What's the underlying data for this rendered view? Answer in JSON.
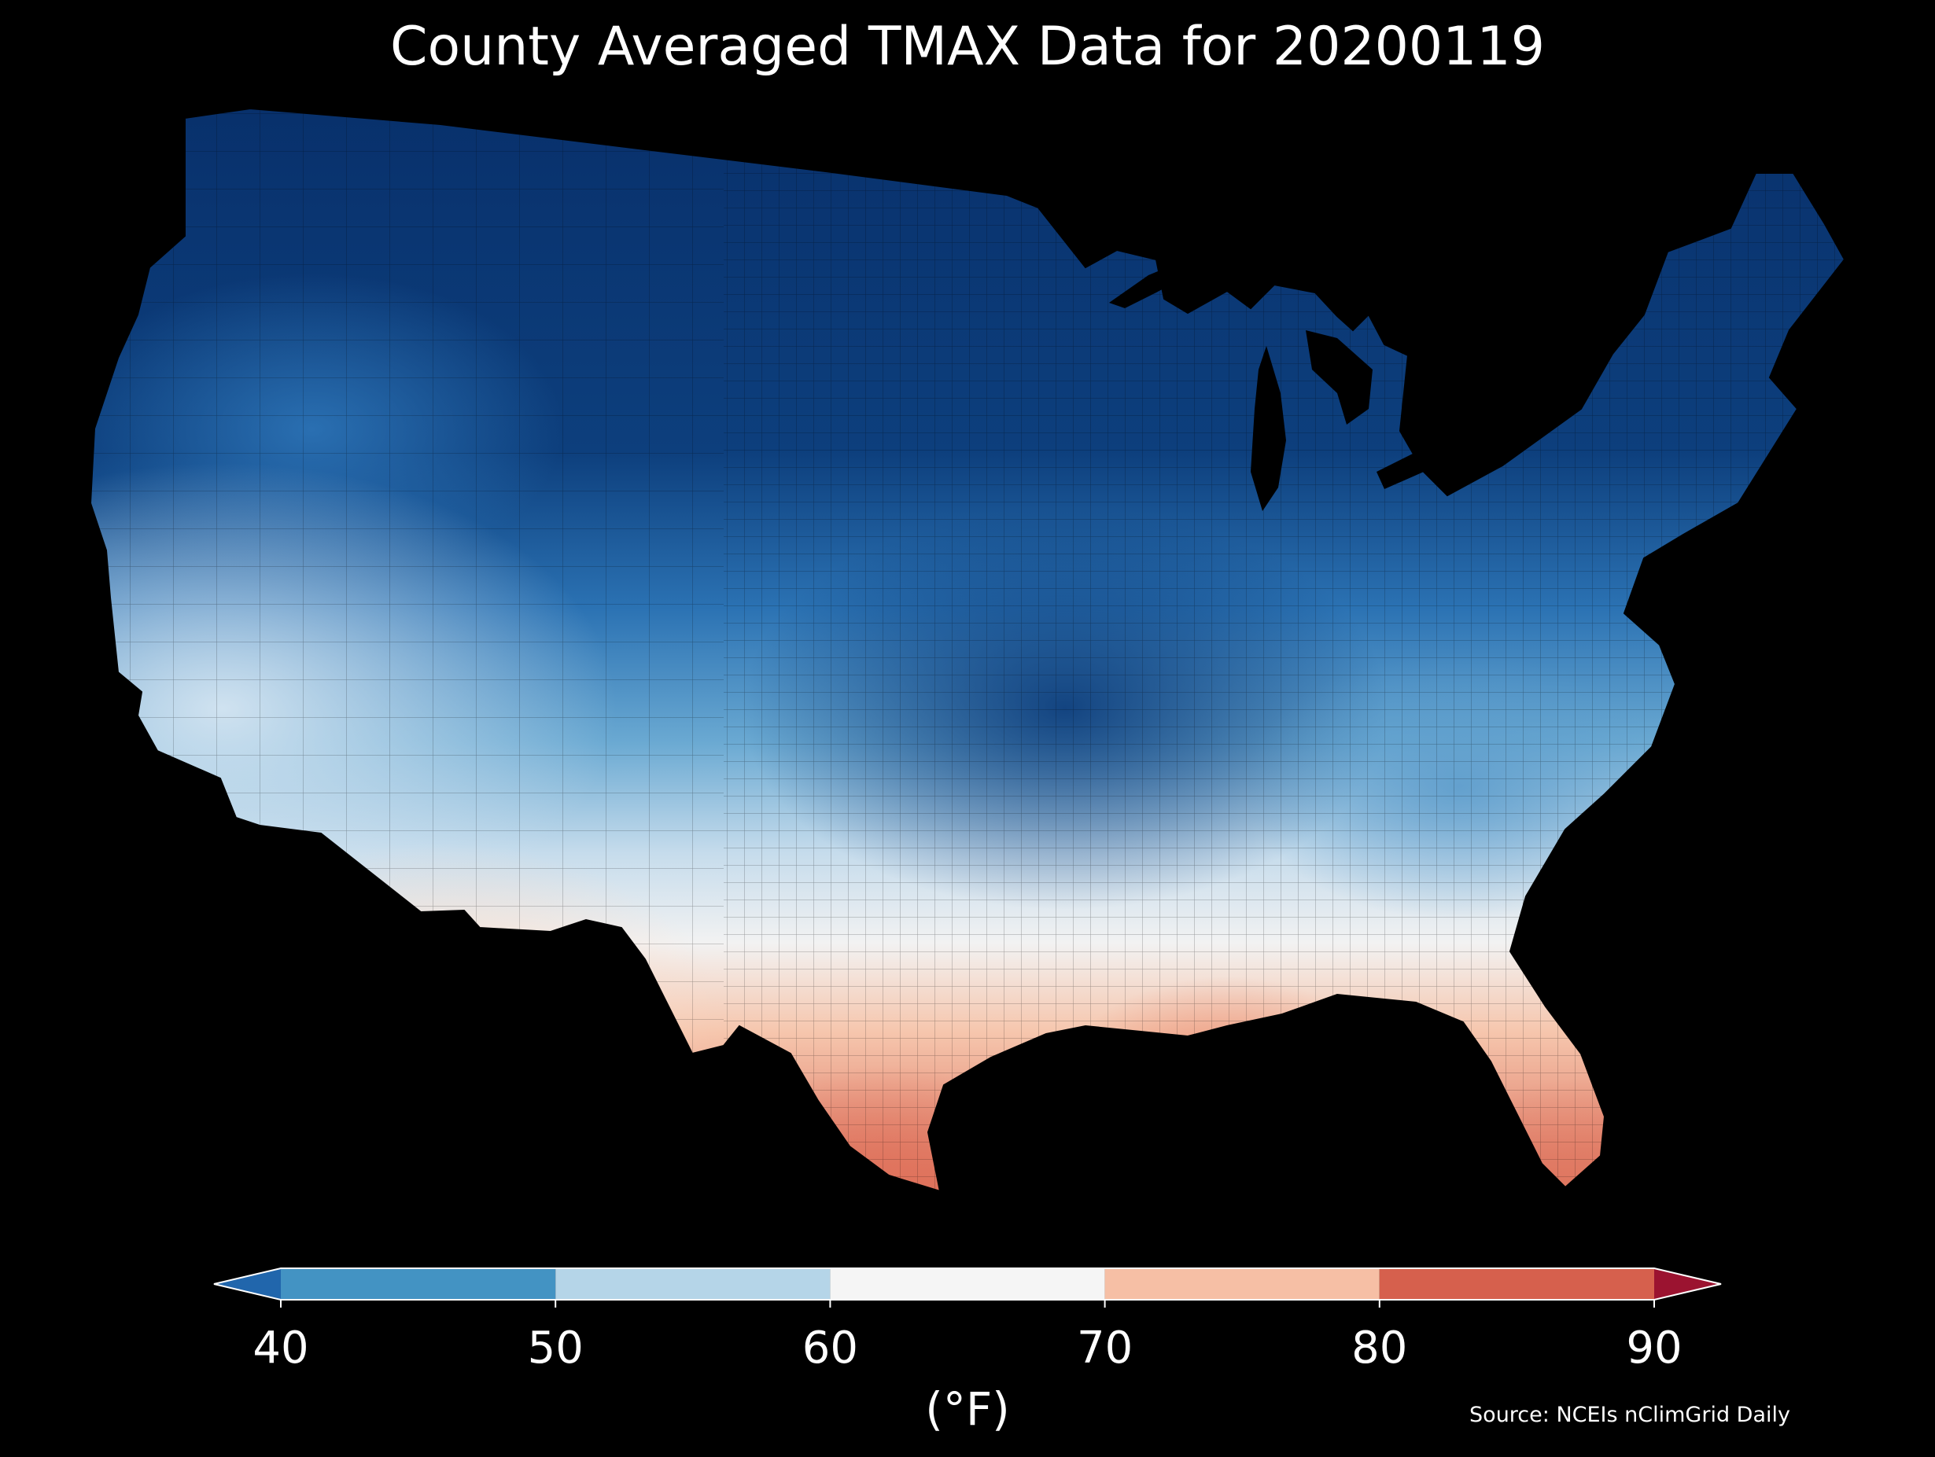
{
  "title": "County Averaged TMAX Data for 20200119",
  "colorbar": {
    "unit": "(°F)",
    "ticks": [
      "40",
      "50",
      "60",
      "70",
      "80",
      "90"
    ],
    "bins": [
      {
        "from": 40,
        "to": 50,
        "color": "#4393c3"
      },
      {
        "from": 50,
        "to": 60,
        "color": "#b5d5e8"
      },
      {
        "from": 60,
        "to": 70,
        "color": "#f5f5f5"
      },
      {
        "from": 70,
        "to": 80,
        "color": "#f6bfa5"
      },
      {
        "from": 80,
        "to": 90,
        "color": "#d6604d"
      }
    ],
    "under_color": "#2166ac",
    "over_color": "#9b1330"
  },
  "source": "Source: NCEIs nClimGrid Daily",
  "map": {
    "region": "Contiguous United States",
    "background": "#000000",
    "border_color": "#000000"
  }
}
